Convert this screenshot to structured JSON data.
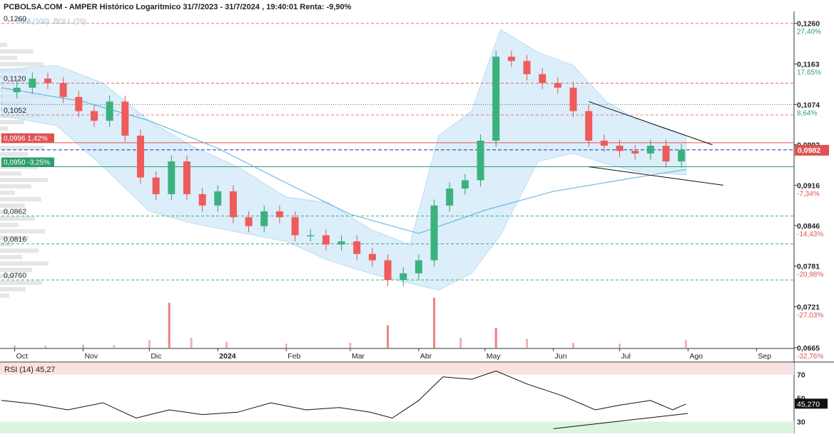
{
  "header": {
    "title": "PCBOLSA.COM - AMPER Histórico Logaritmico 31/7/2023 - 31/7/2024 , 19:40:01 Renta: -9,90%"
  },
  "chart_data": {
    "type": "candlestick",
    "legend": {
      "sma": "SMA (100)",
      "boll": "BOLL (20)"
    },
    "y_scale": "log",
    "ylim": [
      0.0665,
      0.129
    ],
    "x_ticks": [
      {
        "label": "Oct",
        "date": "2023-10-01"
      },
      {
        "label": "Nov",
        "date": "2023-11-01"
      },
      {
        "label": "Dic",
        "date": "2023-12-01"
      },
      {
        "label": "2024",
        "date": "2024-01-01",
        "bold": true
      },
      {
        "label": "Feb",
        "date": "2024-02-01"
      },
      {
        "label": "Mar",
        "date": "2024-03-01"
      },
      {
        "label": "Abr",
        "date": "2024-04-01"
      },
      {
        "label": "May",
        "date": "2024-05-01"
      },
      {
        "label": "Jun",
        "date": "2024-06-01"
      },
      {
        "label": "Jul",
        "date": "2024-07-01"
      },
      {
        "label": "Ago",
        "date": "2024-08-01"
      },
      {
        "label": "Sep",
        "date": "2024-09-01"
      }
    ],
    "x_range": [
      "2023-09-25",
      "2024-09-18"
    ],
    "right_axis": [
      {
        "price": "0,1260",
        "pct": "27,40%",
        "pct_color": "#2e9e6e"
      },
      {
        "price": "0,1163",
        "pct": "17,65%",
        "pct_color": "#2e9e6e"
      },
      {
        "price": "0,1074",
        "pct": "8,64%",
        "pct_color": "#2e9e6e"
      },
      {
        "price": "0,0992",
        "pct": "",
        "pct_color": ""
      },
      {
        "price": "0,0916",
        "pct": "-7,34%",
        "pct_color": "#e05252"
      },
      {
        "price": "0,0846",
        "pct": "-14,43%",
        "pct_color": "#e05252"
      },
      {
        "price": "0,0781",
        "pct": "-20,98%",
        "pct_color": "#e05252"
      },
      {
        "price": "0,0721",
        "pct": "-27,03%",
        "pct_color": "#e05252"
      },
      {
        "price": "0,0665",
        "pct": "-32,76%",
        "pct_color": "#e05252"
      }
    ],
    "left_axis": [
      "0,1260",
      "0,1120",
      "0,1052",
      "0,0862",
      "0,0816",
      "0,0760"
    ],
    "resistance_lines": [
      {
        "price": 0.126,
        "style": "dash",
        "color": "#e05252"
      },
      {
        "price": 0.112,
        "style": "dash",
        "color": "#e05252"
      },
      {
        "price": 0.1052,
        "style": "dash",
        "color": "#e05252"
      },
      {
        "price": 0.1074,
        "style": "dot",
        "color": "#333333"
      },
      {
        "price": 0.0862,
        "style": "dash",
        "color": "#2e9e6e"
      },
      {
        "price": 0.0816,
        "style": "dash",
        "color": "#2e9e6e"
      },
      {
        "price": 0.076,
        "style": "dash",
        "color": "#2e9e6e"
      }
    ],
    "level_upper": {
      "price": 0.0996,
      "label": "0,0996",
      "pct": "1,42%",
      "color": "#e05252"
    },
    "level_lower": {
      "price": 0.095,
      "label": "0,0950",
      "pct": "-3,25%",
      "color": "#2e9e6e"
    },
    "current": {
      "price": 0.0982,
      "label": "0,0982",
      "color": "#e05252"
    },
    "series": {
      "close": [
        [
          "2023-09-25",
          0.11
        ],
        [
          "2023-10-02",
          0.111
        ],
        [
          "2023-10-09",
          0.113
        ],
        [
          "2023-10-16",
          0.112
        ],
        [
          "2023-10-23",
          0.109
        ],
        [
          "2023-10-30",
          0.106
        ],
        [
          "2023-11-06",
          0.104
        ],
        [
          "2023-11-13",
          0.108
        ],
        [
          "2023-11-20",
          0.101
        ],
        [
          "2023-11-27",
          0.093
        ],
        [
          "2023-12-04",
          0.09
        ],
        [
          "2023-12-11",
          0.096
        ],
        [
          "2023-12-18",
          0.09
        ],
        [
          "2023-12-25",
          0.088
        ],
        [
          "2024-01-01",
          0.0905
        ],
        [
          "2024-01-08",
          0.086
        ],
        [
          "2024-01-15",
          0.0845
        ],
        [
          "2024-01-22",
          0.087
        ],
        [
          "2024-01-29",
          0.086
        ],
        [
          "2024-02-05",
          0.083
        ],
        [
          "2024-02-12",
          0.083
        ],
        [
          "2024-02-19",
          0.0815
        ],
        [
          "2024-02-26",
          0.082
        ],
        [
          "2024-03-04",
          0.08
        ],
        [
          "2024-03-11",
          0.079
        ],
        [
          "2024-03-18",
          0.076
        ],
        [
          "2024-03-25",
          0.077
        ],
        [
          "2024-04-01",
          0.079
        ],
        [
          "2024-04-08",
          0.088
        ],
        [
          "2024-04-15",
          0.091
        ],
        [
          "2024-04-22",
          0.0925
        ],
        [
          "2024-04-29",
          0.1
        ],
        [
          "2024-05-06",
          0.118
        ],
        [
          "2024-05-13",
          0.117
        ],
        [
          "2024-05-20",
          0.114
        ],
        [
          "2024-05-27",
          0.112
        ],
        [
          "2024-06-03",
          0.111
        ],
        [
          "2024-06-10",
          0.106
        ],
        [
          "2024-06-17",
          0.1
        ],
        [
          "2024-06-24",
          0.099
        ],
        [
          "2024-07-01",
          0.098
        ],
        [
          "2024-07-08",
          0.0975
        ],
        [
          "2024-07-15",
          0.099
        ],
        [
          "2024-07-22",
          0.096
        ],
        [
          "2024-07-29",
          0.0982
        ]
      ],
      "sma": [
        [
          "2023-09-25",
          0.111
        ],
        [
          "2023-11-01",
          0.108
        ],
        [
          "2023-12-01",
          0.104
        ],
        [
          "2024-01-01",
          0.0985
        ],
        [
          "2024-02-01",
          0.092
        ],
        [
          "2024-03-01",
          0.0865
        ],
        [
          "2024-04-01",
          0.0833
        ],
        [
          "2024-05-01",
          0.0872
        ],
        [
          "2024-06-01",
          0.0905
        ],
        [
          "2024-07-01",
          0.0925
        ],
        [
          "2024-07-31",
          0.0945
        ]
      ],
      "boll_upper": [
        [
          "2023-09-25",
          0.115
        ],
        [
          "2023-10-20",
          0.116
        ],
        [
          "2023-11-10",
          0.112
        ],
        [
          "2023-12-01",
          0.104
        ],
        [
          "2023-12-20",
          0.099
        ],
        [
          "2024-01-10",
          0.095
        ],
        [
          "2024-02-01",
          0.0895
        ],
        [
          "2024-02-20",
          0.0885
        ],
        [
          "2024-03-10",
          0.084
        ],
        [
          "2024-03-28",
          0.0815
        ],
        [
          "2024-04-10",
          0.101
        ],
        [
          "2024-04-25",
          0.106
        ],
        [
          "2024-05-08",
          0.1245
        ],
        [
          "2024-05-25",
          0.119
        ],
        [
          "2024-06-10",
          0.116
        ],
        [
          "2024-06-25",
          0.108
        ],
        [
          "2024-07-10",
          0.104
        ],
        [
          "2024-07-31",
          0.101
        ]
      ],
      "boll_lower": [
        [
          "2023-09-25",
          0.105
        ],
        [
          "2023-10-20",
          0.103
        ],
        [
          "2023-11-10",
          0.095
        ],
        [
          "2023-12-01",
          0.087
        ],
        [
          "2023-12-20",
          0.085
        ],
        [
          "2024-01-10",
          0.0835
        ],
        [
          "2024-02-01",
          0.082
        ],
        [
          "2024-02-20",
          0.079
        ],
        [
          "2024-03-10",
          0.077
        ],
        [
          "2024-03-28",
          0.0755
        ],
        [
          "2024-04-10",
          0.0745
        ],
        [
          "2024-04-25",
          0.077
        ],
        [
          "2024-05-08",
          0.083
        ],
        [
          "2024-05-25",
          0.096
        ],
        [
          "2024-06-10",
          0.0975
        ],
        [
          "2024-06-25",
          0.0955
        ],
        [
          "2024-07-10",
          0.094
        ],
        [
          "2024-07-31",
          0.0935
        ]
      ],
      "volume": [
        [
          "2023-10-01",
          0.05
        ],
        [
          "2023-10-15",
          0.04
        ],
        [
          "2023-11-01",
          0.06
        ],
        [
          "2023-11-15",
          0.05
        ],
        [
          "2023-12-01",
          0.15
        ],
        [
          "2023-12-10",
          0.9
        ],
        [
          "2023-12-20",
          0.2
        ],
        [
          "2024-01-05",
          0.12
        ],
        [
          "2024-02-01",
          0.08
        ],
        [
          "2024-03-01",
          0.1
        ],
        [
          "2024-03-18",
          0.45
        ],
        [
          "2024-04-08",
          1.0
        ],
        [
          "2024-04-20",
          0.2
        ],
        [
          "2024-05-06",
          0.4
        ],
        [
          "2024-05-20",
          0.18
        ],
        [
          "2024-06-10",
          0.1
        ],
        [
          "2024-07-01",
          0.08
        ],
        [
          "2024-07-31",
          0.15
        ]
      ]
    },
    "trendlines": [
      {
        "from": [
          "2024-06-17",
          0.108
        ],
        "to": [
          "2024-08-12",
          0.0992
        ]
      },
      {
        "from": [
          "2024-06-17",
          0.095
        ],
        "to": [
          "2024-08-17",
          0.0916
        ]
      }
    ],
    "rsi": {
      "label": "RSI (14)",
      "value": "45,27",
      "value_badge": "45,270",
      "levels": [
        "70",
        "50",
        "30"
      ],
      "values": [
        [
          "2023-09-25",
          48
        ],
        [
          "2023-10-10",
          45
        ],
        [
          "2023-10-25",
          40
        ],
        [
          "2023-11-10",
          46
        ],
        [
          "2023-11-25",
          33
        ],
        [
          "2023-12-10",
          40
        ],
        [
          "2023-12-25",
          36
        ],
        [
          "2024-01-10",
          38
        ],
        [
          "2024-01-25",
          46
        ],
        [
          "2024-02-10",
          40
        ],
        [
          "2024-02-25",
          42
        ],
        [
          "2024-03-10",
          38
        ],
        [
          "2024-03-20",
          33
        ],
        [
          "2024-04-01",
          48
        ],
        [
          "2024-04-12",
          68
        ],
        [
          "2024-04-25",
          66
        ],
        [
          "2024-05-06",
          73
        ],
        [
          "2024-05-20",
          62
        ],
        [
          "2024-06-05",
          52
        ],
        [
          "2024-06-20",
          40
        ],
        [
          "2024-07-01",
          44
        ],
        [
          "2024-07-15",
          48
        ],
        [
          "2024-07-25",
          40
        ],
        [
          "2024-07-31",
          45
        ]
      ],
      "trendline": {
        "from": [
          "2024-06-01",
          24
        ],
        "to": [
          "2024-08-01",
          37
        ]
      }
    }
  }
}
